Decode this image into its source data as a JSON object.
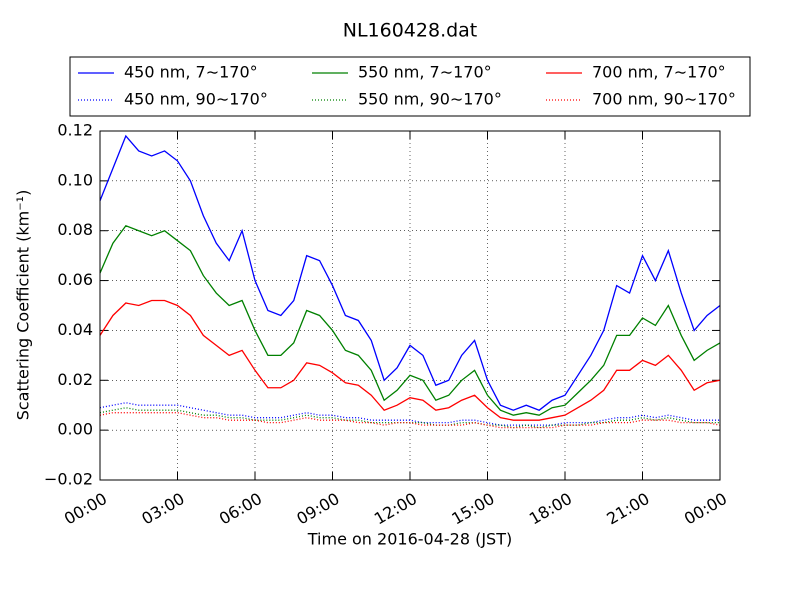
{
  "chart_data": {
    "type": "line",
    "title": "NL160428.dat",
    "x_label": "Time on 2016-04-28 (JST)",
    "y_label": "Scattering Coefficient (km⁻¹)",
    "x": [
      0,
      0.5,
      1,
      1.5,
      2,
      2.5,
      3,
      3.5,
      4,
      4.5,
      5,
      5.5,
      6,
      6.5,
      7,
      7.5,
      8,
      8.5,
      9,
      9.5,
      10,
      10.5,
      11,
      11.5,
      12,
      12.5,
      13,
      13.5,
      14,
      14.5,
      15,
      15.5,
      16,
      16.5,
      17,
      17.5,
      18,
      18.5,
      19,
      19.5,
      20,
      20.5,
      21,
      21.5,
      22,
      22.5,
      23,
      23.5,
      24
    ],
    "series": [
      {
        "name": "450 nm, 7∼170°",
        "color": "#0000ff",
        "style": "solid",
        "values": [
          0.092,
          0.105,
          0.118,
          0.112,
          0.11,
          0.112,
          0.108,
          0.1,
          0.086,
          0.075,
          0.068,
          0.08,
          0.06,
          0.048,
          0.046,
          0.052,
          0.07,
          0.068,
          0.058,
          0.046,
          0.044,
          0.036,
          0.02,
          0.025,
          0.034,
          0.03,
          0.018,
          0.02,
          0.03,
          0.036,
          0.02,
          0.01,
          0.008,
          0.01,
          0.008,
          0.012,
          0.014,
          0.022,
          0.03,
          0.04,
          0.058,
          0.055,
          0.07,
          0.06,
          0.072,
          0.055,
          0.04,
          0.046,
          0.05
        ]
      },
      {
        "name": "450 nm, 90∼170°",
        "color": "#0000ff",
        "style": "dotted",
        "values": [
          0.009,
          0.01,
          0.011,
          0.01,
          0.01,
          0.01,
          0.01,
          0.009,
          0.008,
          0.007,
          0.006,
          0.006,
          0.005,
          0.005,
          0.005,
          0.006,
          0.007,
          0.006,
          0.006,
          0.005,
          0.005,
          0.004,
          0.004,
          0.004,
          0.004,
          0.003,
          0.003,
          0.003,
          0.004,
          0.004,
          0.003,
          0.002,
          0.002,
          0.002,
          0.002,
          0.002,
          0.003,
          0.003,
          0.003,
          0.004,
          0.005,
          0.005,
          0.006,
          0.005,
          0.006,
          0.005,
          0.004,
          0.004,
          0.004
        ]
      },
      {
        "name": "550 nm, 7∼170°",
        "color": "#008000",
        "style": "solid",
        "values": [
          0.063,
          0.075,
          0.082,
          0.08,
          0.078,
          0.08,
          0.076,
          0.072,
          0.062,
          0.055,
          0.05,
          0.052,
          0.04,
          0.03,
          0.03,
          0.035,
          0.048,
          0.046,
          0.04,
          0.032,
          0.03,
          0.024,
          0.012,
          0.016,
          0.022,
          0.02,
          0.012,
          0.014,
          0.02,
          0.024,
          0.014,
          0.008,
          0.006,
          0.007,
          0.006,
          0.009,
          0.01,
          0.015,
          0.02,
          0.026,
          0.038,
          0.038,
          0.045,
          0.042,
          0.05,
          0.038,
          0.028,
          0.032,
          0.035
        ]
      },
      {
        "name": "550 nm, 90∼170°",
        "color": "#008000",
        "style": "dotted",
        "values": [
          0.007,
          0.008,
          0.009,
          0.008,
          0.008,
          0.008,
          0.008,
          0.007,
          0.006,
          0.006,
          0.005,
          0.005,
          0.004,
          0.004,
          0.004,
          0.005,
          0.006,
          0.005,
          0.005,
          0.004,
          0.004,
          0.003,
          0.003,
          0.003,
          0.003,
          0.003,
          0.002,
          0.002,
          0.003,
          0.003,
          0.002,
          0.002,
          0.001,
          0.002,
          0.001,
          0.002,
          0.002,
          0.002,
          0.003,
          0.003,
          0.004,
          0.004,
          0.005,
          0.004,
          0.005,
          0.004,
          0.003,
          0.003,
          0.003
        ]
      },
      {
        "name": "700 nm, 7∼170°",
        "color": "#ff0000",
        "style": "solid",
        "values": [
          0.038,
          0.046,
          0.051,
          0.05,
          0.052,
          0.052,
          0.05,
          0.046,
          0.038,
          0.034,
          0.03,
          0.032,
          0.024,
          0.017,
          0.017,
          0.02,
          0.027,
          0.026,
          0.023,
          0.019,
          0.018,
          0.014,
          0.008,
          0.01,
          0.013,
          0.012,
          0.008,
          0.009,
          0.012,
          0.014,
          0.009,
          0.005,
          0.004,
          0.004,
          0.004,
          0.005,
          0.006,
          0.009,
          0.012,
          0.016,
          0.024,
          0.024,
          0.028,
          0.026,
          0.03,
          0.024,
          0.016,
          0.019,
          0.02
        ]
      },
      {
        "name": "700 nm, 90∼170°",
        "color": "#ff0000",
        "style": "dotted",
        "values": [
          0.006,
          0.007,
          0.007,
          0.007,
          0.007,
          0.007,
          0.007,
          0.006,
          0.005,
          0.005,
          0.004,
          0.004,
          0.004,
          0.003,
          0.003,
          0.004,
          0.005,
          0.004,
          0.004,
          0.004,
          0.003,
          0.003,
          0.002,
          0.003,
          0.003,
          0.002,
          0.002,
          0.002,
          0.002,
          0.003,
          0.002,
          0.001,
          0.001,
          0.001,
          0.001,
          0.001,
          0.002,
          0.002,
          0.002,
          0.003,
          0.003,
          0.003,
          0.004,
          0.004,
          0.004,
          0.003,
          0.003,
          0.003,
          0.002
        ]
      }
    ],
    "xlim": [
      0,
      24
    ],
    "xticks": [
      {
        "value": 0,
        "label": "00:00"
      },
      {
        "value": 3,
        "label": "03:00"
      },
      {
        "value": 6,
        "label": "06:00"
      },
      {
        "value": 9,
        "label": "09:00"
      },
      {
        "value": 12,
        "label": "12:00"
      },
      {
        "value": 15,
        "label": "15:00"
      },
      {
        "value": 18,
        "label": "18:00"
      },
      {
        "value": 21,
        "label": "21:00"
      },
      {
        "value": 24,
        "label": "00:00"
      }
    ],
    "ylim": [
      -0.02,
      0.12
    ],
    "yticks": [
      {
        "value": -0.02,
        "label": "−0.02"
      },
      {
        "value": 0,
        "label": "0.00"
      },
      0.02,
      0.04,
      0.06,
      0.08,
      {
        "value": 0.1,
        "label": "0.10"
      },
      0.12
    ],
    "grid": true,
    "legend": "top"
  }
}
